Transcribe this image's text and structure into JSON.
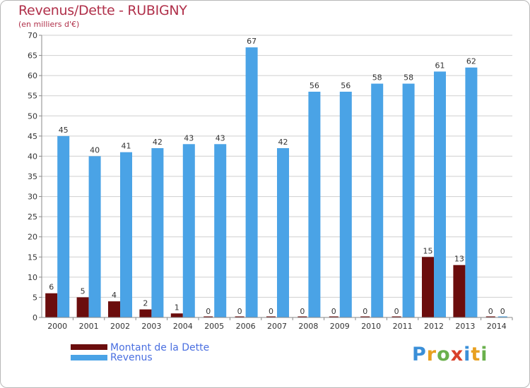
{
  "title": "Revenus/Dette - RUBIGNY",
  "subtitle": "(en milliers d'€)",
  "logo": "Proxiti",
  "colors": {
    "dette": "#6b0d0d",
    "revenus": "#4aa3e6",
    "grid": "#cfcfcf",
    "title": "#b0304a",
    "legend": "#4a6fe0"
  },
  "chart_data": {
    "type": "bar",
    "title": "Revenus/Dette - RUBIGNY",
    "ylabel": "(en milliers d'€)",
    "ylim": [
      0,
      70
    ],
    "yticks": [
      0,
      5,
      10,
      15,
      20,
      25,
      30,
      35,
      40,
      45,
      50,
      55,
      60,
      65,
      70
    ],
    "categories": [
      "2000",
      "2001",
      "2002",
      "2003",
      "2004",
      "2005",
      "2006",
      "2007",
      "2008",
      "2009",
      "2010",
      "2011",
      "2012",
      "2013",
      "2014"
    ],
    "series": [
      {
        "name": "Montant de la Dette",
        "values": [
          6,
          5,
          4,
          2,
          1,
          0,
          0,
          0,
          0,
          0,
          0,
          0,
          15,
          13,
          0
        ]
      },
      {
        "name": "Revenus",
        "values": [
          45,
          40,
          41,
          42,
          43,
          43,
          67,
          42,
          56,
          56,
          58,
          58,
          61,
          62,
          0
        ]
      }
    ],
    "legend": [
      "Montant de la Dette",
      "Revenus"
    ]
  }
}
